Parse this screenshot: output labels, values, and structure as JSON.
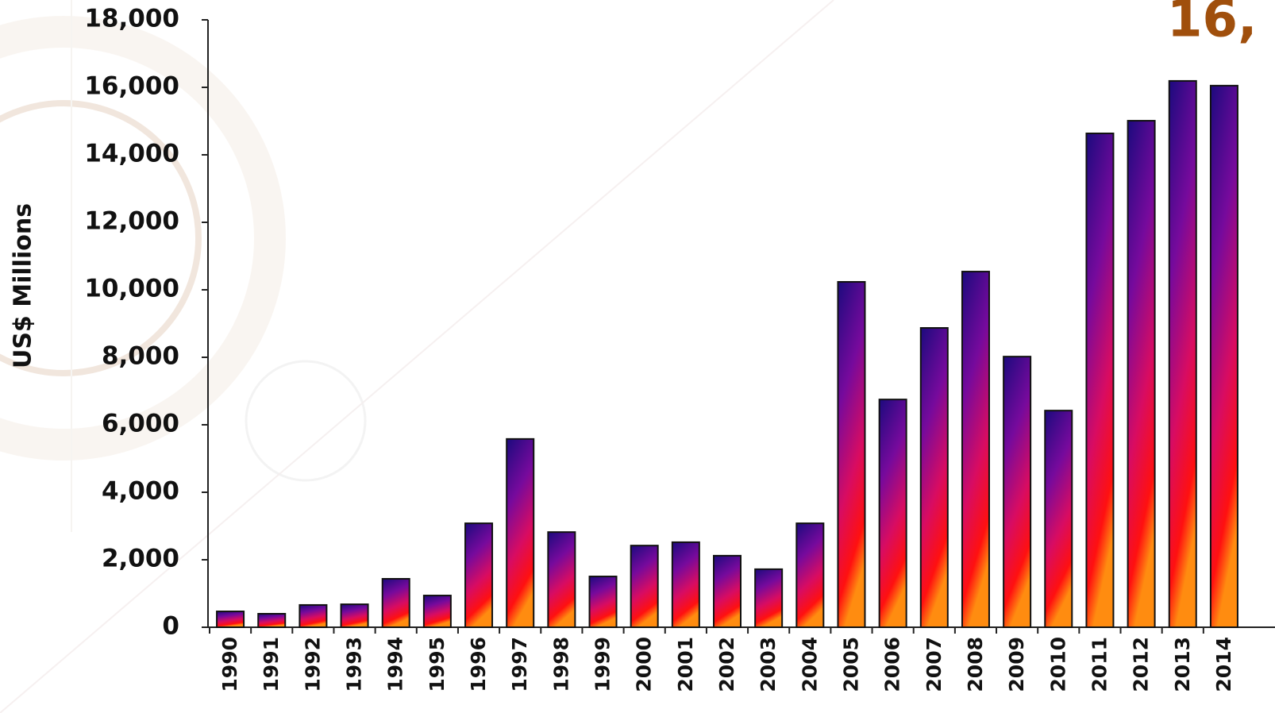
{
  "chart_data": {
    "type": "bar",
    "annotation": "16,",
    "y_label": "US$ Millions",
    "categories": [
      "1990",
      "1991",
      "1992",
      "1993",
      "1994",
      "1995",
      "1996",
      "1997",
      "1998",
      "1999",
      "2000",
      "2001",
      "2002",
      "2003",
      "2004",
      "2005",
      "2006",
      "2007",
      "2008",
      "2009",
      "2010",
      "2011",
      "2012",
      "2013",
      "2014"
    ],
    "values": [
      470,
      400,
      660,
      680,
      1435,
      940,
      3080,
      5580,
      2820,
      1505,
      2420,
      2520,
      2120,
      1720,
      3080,
      10235,
      6750,
      8870,
      10540,
      8020,
      6420,
      14635,
      15010,
      16190,
      16050
    ],
    "gradient": [
      "#1c0a7e",
      "#760a9c",
      "#d80c62",
      "#ff1010",
      "#ff8c10"
    ],
    "ylim": [
      0,
      18000
    ],
    "yticks": [
      0,
      {
        "value": 2000,
        "label": "2,000"
      },
      {
        "value": 4000,
        "label": "4,000"
      },
      {
        "value": 6000,
        "label": "6,000"
      },
      {
        "value": 8000,
        "label": "8,000"
      },
      {
        "value": 10000,
        "label": "10,000"
      },
      {
        "value": 12000,
        "label": "12,000"
      },
      {
        "value": 14000,
        "label": "14,000"
      },
      {
        "value": 16000,
        "label": "16,000"
      },
      {
        "value": 18000,
        "label": "18,000"
      }
    ],
    "grid": false
  }
}
